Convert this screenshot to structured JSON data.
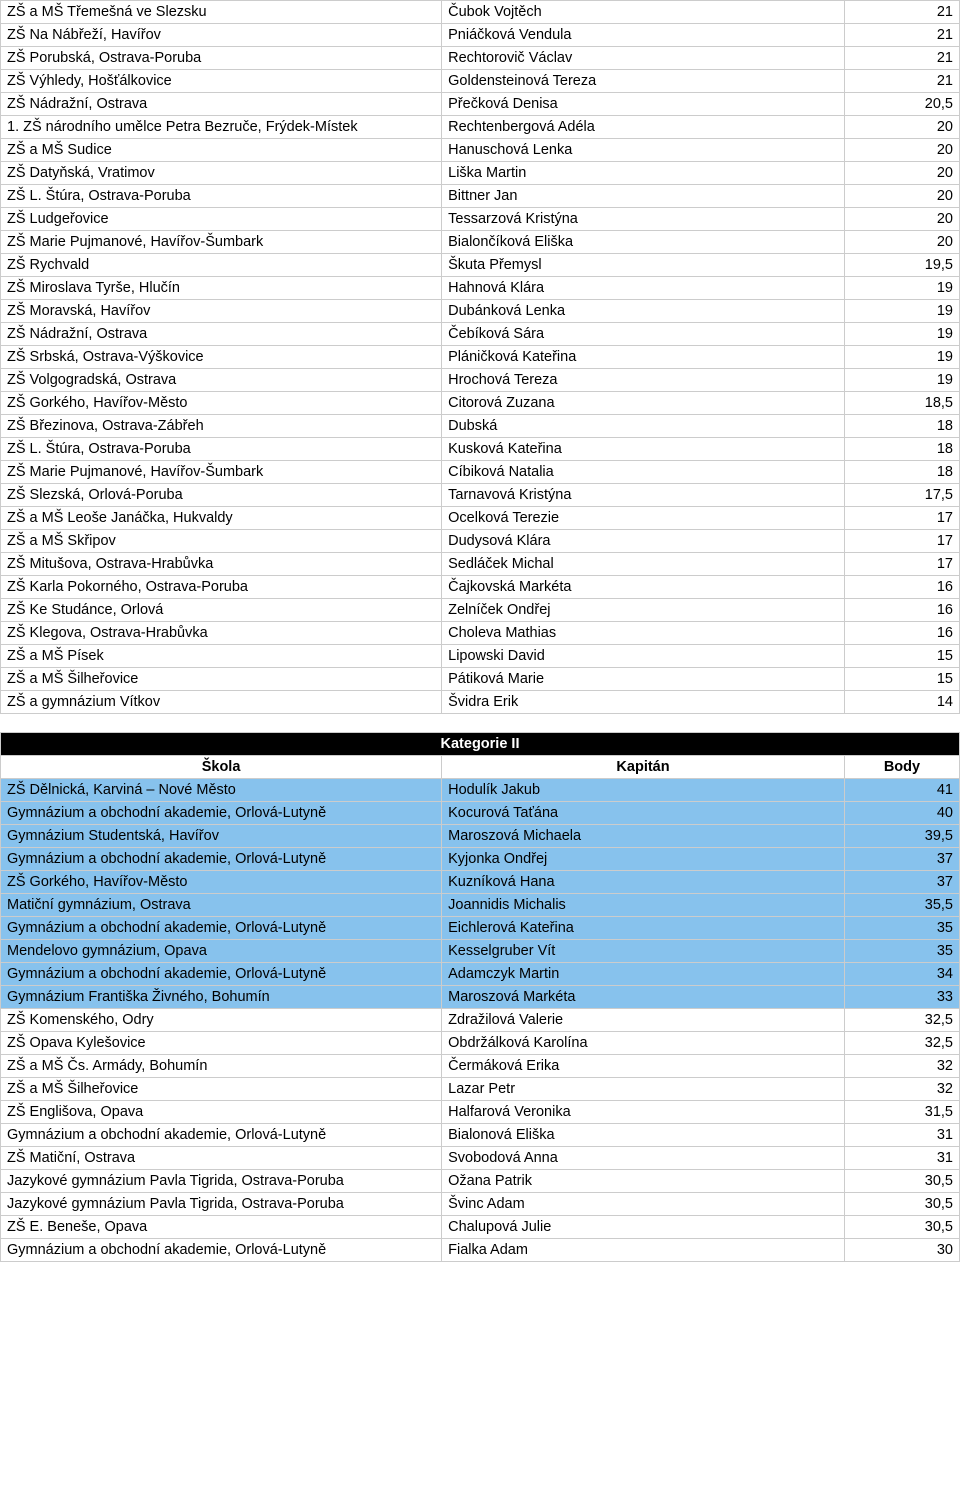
{
  "colors": {
    "highlight": "#87c2ed",
    "border": "#cccccc",
    "header_bg": "#000000",
    "header_fg": "#ffffff"
  },
  "table1": {
    "rows": [
      {
        "school": "ZŠ a MŠ Třemešná ve Slezsku",
        "captain": "Čubok Vojtěch",
        "points": "21"
      },
      {
        "school": "ZŠ Na Nábřeží, Havířov",
        "captain": "Pniáčková Vendula",
        "points": "21"
      },
      {
        "school": "ZŠ Porubská, Ostrava-Poruba",
        "captain": "Rechtorovič Václav",
        "points": "21"
      },
      {
        "school": "ZŠ Výhledy, Hošťálkovice",
        "captain": "Goldensteinová Tereza",
        "points": "21"
      },
      {
        "school": "ZŠ Nádražní, Ostrava",
        "captain": "Přečková Denisa",
        "points": "20,5"
      },
      {
        "school": "1. ZŠ národního umělce Petra Bezruče, Frýdek-Místek",
        "captain": "Rechtenbergová Adéla",
        "points": "20"
      },
      {
        "school": "ZŠ a MŠ Sudice",
        "captain": "Hanuschová Lenka",
        "points": "20"
      },
      {
        "school": "ZŠ Datyňská, Vratimov",
        "captain": "Liška Martin",
        "points": "20"
      },
      {
        "school": "ZŠ L. Štúra, Ostrava-Poruba",
        "captain": "Bittner Jan",
        "points": "20"
      },
      {
        "school": "ZŠ Ludgeřovice",
        "captain": "Tessarzová Kristýna",
        "points": "20"
      },
      {
        "school": "ZŠ Marie Pujmanové, Havířov-Šumbark",
        "captain": "Bialončíková Eliška",
        "points": "20"
      },
      {
        "school": "ZŠ Rychvald",
        "captain": "Škuta Přemysl",
        "points": "19,5"
      },
      {
        "school": "ZŠ Miroslava Tyrše, Hlučín",
        "captain": "Hahnová Klára",
        "points": "19"
      },
      {
        "school": "ZŠ Moravská, Havířov",
        "captain": "Dubánková Lenka",
        "points": "19"
      },
      {
        "school": "ZŠ Nádražní, Ostrava",
        "captain": "Čebíková Sára",
        "points": "19"
      },
      {
        "school": "ZŠ Srbská, Ostrava-Výškovice",
        "captain": "Pláničková Kateřina",
        "points": "19"
      },
      {
        "school": "ZŠ Volgogradská, Ostrava",
        "captain": "Hrochová Tereza",
        "points": "19"
      },
      {
        "school": "ZŠ Gorkého, Havířov-Město",
        "captain": "Citorová Zuzana",
        "points": "18,5"
      },
      {
        "school": "ZŠ Březinova, Ostrava-Zábřeh",
        "captain": "Dubská",
        "points": "18"
      },
      {
        "school": "ZŠ L. Štúra, Ostrava-Poruba",
        "captain": "Kusková Kateřina",
        "points": "18"
      },
      {
        "school": "ZŠ Marie Pujmanové, Havířov-Šumbark",
        "captain": "Cíbiková Natalia",
        "points": "18"
      },
      {
        "school": "ZŠ Slezská, Orlová-Poruba",
        "captain": "Tarnavová Kristýna",
        "points": "17,5"
      },
      {
        "school": "ZŠ a MŠ Leoše Janáčka, Hukvaldy",
        "captain": "Ocelková Terezie",
        "points": "17"
      },
      {
        "school": "ZŠ a MŠ Skřipov",
        "captain": "Dudysová Klára",
        "points": "17"
      },
      {
        "school": "ZŠ Mitušova, Ostrava-Hrabůvka",
        "captain": "Sedláček Michal",
        "points": "17"
      },
      {
        "school": "ZŠ Karla Pokorného, Ostrava-Poruba",
        "captain": "Čajkovská Markéta",
        "points": "16"
      },
      {
        "school": "ZŠ Ke Studánce, Orlová",
        "captain": "Zelníček Ondřej",
        "points": "16"
      },
      {
        "school": "ZŠ Klegova, Ostrava-Hrabůvka",
        "captain": "Choleva Mathias",
        "points": "16"
      },
      {
        "school": "ZŠ a MŠ Písek",
        "captain": "Lipowski David",
        "points": "15"
      },
      {
        "school": "ZŠ a MŠ Šilheřovice",
        "captain": "Pátiková Marie",
        "points": "15"
      },
      {
        "school": "ZŠ a gymnázium Vítkov",
        "captain": "Švidra Erik",
        "points": "14"
      }
    ]
  },
  "table2": {
    "title": "Kategorie II",
    "headers": {
      "school": "Škola",
      "captain": "Kapitán",
      "points": "Body"
    },
    "rows": [
      {
        "school": "ZŠ Dělnická, Karviná – Nové Město",
        "captain": "Hodulík Jakub",
        "points": "41",
        "hl": true
      },
      {
        "school": "Gymnázium a obchodní akademie, Orlová-Lutyně",
        "captain": "Kocurová Taťána",
        "points": "40",
        "hl": true
      },
      {
        "school": "Gymnázium Studentská, Havířov",
        "captain": "Maroszová Michaela",
        "points": "39,5",
        "hl": true
      },
      {
        "school": "Gymnázium a obchodní akademie, Orlová-Lutyně",
        "captain": "Kyjonka Ondřej",
        "points": "37",
        "hl": true
      },
      {
        "school": "ZŠ Gorkého, Havířov-Město",
        "captain": "Kuzníková Hana",
        "points": "37",
        "hl": true
      },
      {
        "school": "Matiční gymnázium, Ostrava",
        "captain": "Joannidis Michalis",
        "points": "35,5",
        "hl": true
      },
      {
        "school": "Gymnázium a obchodní akademie, Orlová-Lutyně",
        "captain": "Eichlerová Kateřina",
        "points": "35",
        "hl": true
      },
      {
        "school": "Mendelovo gymnázium, Opava",
        "captain": "Kesselgruber Vít",
        "points": "35",
        "hl": true
      },
      {
        "school": "Gymnázium a obchodní akademie, Orlová-Lutyně",
        "captain": "Adamczyk Martin",
        "points": "34",
        "hl": true
      },
      {
        "school": "Gymnázium Františka Živného, Bohumín",
        "captain": "Maroszová Markéta",
        "points": "33",
        "hl": true
      },
      {
        "school": "ZŠ Komenského, Odry",
        "captain": "Zdražilová Valerie",
        "points": "32,5",
        "hl": false
      },
      {
        "school": "ZŠ Opava Kylešovice",
        "captain": "Obdržálková Karolína",
        "points": "32,5",
        "hl": false
      },
      {
        "school": "ZŠ a MŠ Čs. Armády, Bohumín",
        "captain": "Čermáková Erika",
        "points": "32",
        "hl": false
      },
      {
        "school": "ZŠ a MŠ Šilheřovice",
        "captain": "Lazar Petr",
        "points": "32",
        "hl": false
      },
      {
        "school": "ZŠ Englišova, Opava",
        "captain": "Halfarová Veronika",
        "points": "31,5",
        "hl": false
      },
      {
        "school": "Gymnázium a obchodní akademie, Orlová-Lutyně",
        "captain": "Bialonová Eliška",
        "points": "31",
        "hl": false
      },
      {
        "school": "ZŠ Matiční, Ostrava",
        "captain": "Svobodová Anna",
        "points": "31",
        "hl": false
      },
      {
        "school": "Jazykové gymnázium Pavla Tigrida, Ostrava-Poruba",
        "captain": "Ožana Patrik",
        "points": "30,5",
        "hl": false
      },
      {
        "school": "Jazykové gymnázium Pavla Tigrida, Ostrava-Poruba",
        "captain": "Švinc Adam",
        "points": "30,5",
        "hl": false
      },
      {
        "school": "ZŠ E. Beneše, Opava",
        "captain": "Chalupová Julie",
        "points": "30,5",
        "hl": false
      },
      {
        "school": "Gymnázium a obchodní akademie, Orlová-Lutyně",
        "captain": "Fialka Adam",
        "points": "30",
        "hl": false
      }
    ]
  }
}
